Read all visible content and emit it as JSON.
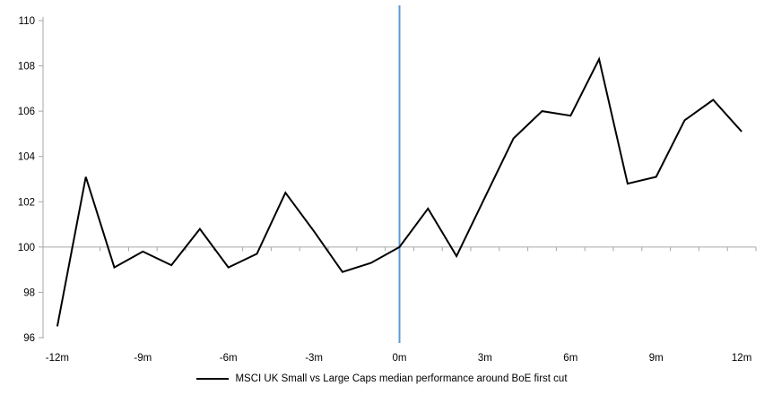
{
  "chart_data": {
    "type": "line",
    "title": "",
    "xlabel": "",
    "ylabel": "",
    "x": [
      "-12m",
      "-11m",
      "-10m",
      "-9m",
      "-8m",
      "-7m",
      "-6m",
      "-5m",
      "-4m",
      "-3m",
      "-2m",
      "-1m",
      "0m",
      "1m",
      "2m",
      "3m",
      "4m",
      "5m",
      "6m",
      "7m",
      "8m",
      "9m",
      "10m",
      "11m",
      "12m"
    ],
    "series": [
      {
        "name": "MSCI UK Small vs Large Caps median performance around BoE first cut",
        "color": "#000000",
        "values": [
          96.5,
          103.1,
          99.1,
          99.8,
          99.2,
          100.8,
          99.1,
          99.7,
          102.4,
          100.7,
          98.9,
          99.3,
          100.0,
          101.7,
          99.6,
          102.2,
          104.8,
          106.0,
          105.8,
          108.3,
          102.8,
          103.1,
          105.6,
          106.5,
          105.1
        ]
      }
    ],
    "ylim": [
      96,
      110
    ],
    "y_ticks": [
      96,
      98,
      100,
      102,
      104,
      106,
      108,
      110
    ],
    "x_tick_label_every": 3,
    "baseline_value": 100,
    "event_line": {
      "x": "0m",
      "color": "#5B9BD5"
    },
    "axis_color": "#A6A6A6",
    "grid": "off",
    "legend": {
      "position": "bottom",
      "label": "MSCI UK Small vs Large Caps median performance around BoE first cut"
    }
  }
}
